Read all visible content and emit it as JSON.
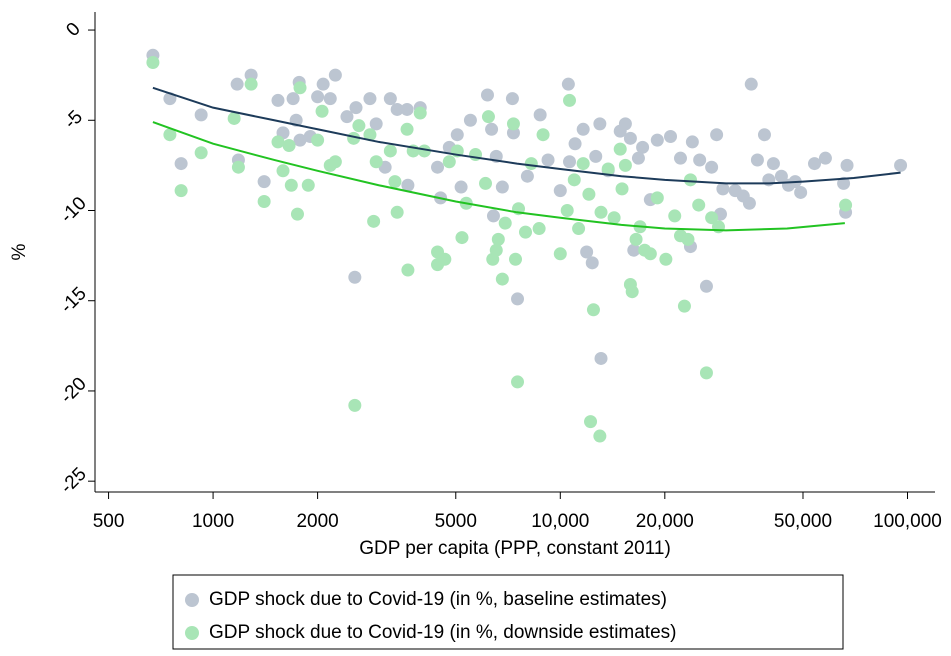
{
  "chart_data": {
    "type": "scatter",
    "x_label": "GDP per capita (PPP, constant 2011)",
    "y_label": "%",
    "x_scale": "log",
    "xlim": [
      457,
      120000
    ],
    "ylim": [
      -25.6,
      1.0
    ],
    "xticks": [
      500,
      1000,
      2000,
      5000,
      {
        "value": 10000,
        "label": "10,000"
      },
      {
        "value": 20000,
        "label": "20,000"
      },
      {
        "value": 50000,
        "label": "50,000"
      },
      {
        "value": 100000,
        "label": "100,000"
      }
    ],
    "yticks": [
      0,
      -5,
      -10,
      -15,
      -20,
      -25
    ],
    "grid": false,
    "legend_position": "bottom",
    "series": [
      {
        "name": "GDP shock due to Covid-19 (in %, baseline estimates)",
        "color": "#bcc5d1",
        "x": [
          671,
          751,
          924,
          809,
          1173,
          1183,
          1287,
          1403,
          1538,
          1590,
          1700,
          1735,
          1770,
          1780,
          1905,
          2000,
          2075,
          2175,
          2250,
          2430,
          2580,
          2560,
          2830,
          2950,
          3130,
          3240,
          3390,
          3620,
          3640,
          3950,
          4430,
          4520,
          4790,
          5050,
          5180,
          5510,
          6170,
          6340,
          6420,
          6540,
          6810,
          7280,
          7330,
          7530,
          8040,
          8750,
          9220,
          10000,
          10550,
          10630,
          11030,
          11640,
          11910,
          12360,
          12650,
          13000,
          13100,
          13740,
          14880,
          15400,
          15920,
          16280,
          16790,
          17260,
          18170,
          19030,
          20770,
          22190,
          23710,
          24010,
          25200,
          26360,
          27280,
          28200,
          28930,
          29400,
          31900,
          33650,
          35050,
          35480,
          36960,
          38730,
          39860,
          41100,
          43330,
          45420,
          47480,
          49230,
          53970,
          58020,
          65450,
          66320,
          66970,
          95500
        ],
        "values": [
          -1.4,
          -3.8,
          -4.7,
          -7.4,
          -3.0,
          -7.2,
          -2.5,
          -8.4,
          -3.9,
          -5.7,
          -3.8,
          -5.0,
          -2.9,
          -6.1,
          -5.9,
          -3.7,
          -3.0,
          -3.8,
          -2.5,
          -4.8,
          -4.3,
          -13.7,
          -3.8,
          -5.2,
          -7.6,
          -3.8,
          -4.4,
          -4.4,
          -8.6,
          -4.3,
          -7.6,
          -9.3,
          -6.5,
          -5.8,
          -8.7,
          -5.0,
          -3.6,
          -5.5,
          -10.3,
          -7.0,
          -8.7,
          -3.8,
          -5.7,
          -14.9,
          -8.1,
          -4.7,
          -7.2,
          -8.9,
          -3.0,
          -7.3,
          -6.3,
          -5.5,
          -12.3,
          -12.9,
          -7.0,
          -5.2,
          -18.2,
          -7.8,
          -5.6,
          -5.2,
          -6.0,
          -12.2,
          -7.1,
          -6.5,
          -9.4,
          -6.1,
          -5.9,
          -7.1,
          -12.0,
          -6.2,
          -7.2,
          -14.2,
          -7.6,
          -5.8,
          -10.2,
          -8.8,
          -8.9,
          -9.2,
          -9.6,
          -3.0,
          -7.2,
          -5.8,
          -8.3,
          -7.4,
          -8.1,
          -8.6,
          -8.4,
          -9.0,
          -7.4,
          -7.1,
          -8.5,
          -10.1,
          -7.5,
          -7.5
        ]
      },
      {
        "name": "GDP shock due to Covid-19 (in %, downside estimates)",
        "color": "#a8e5b6",
        "x": [
          671,
          751,
          809,
          924,
          1150,
          1183,
          1287,
          1403,
          1538,
          1590,
          1655,
          1680,
          1750,
          1780,
          1880,
          2000,
          2060,
          2175,
          2250,
          2560,
          2540,
          2630,
          2830,
          2900,
          2950,
          3240,
          3340,
          3390,
          3620,
          3640,
          3770,
          3950,
          4060,
          4430,
          4430,
          4650,
          4790,
          5050,
          5210,
          5360,
          5700,
          6090,
          6210,
          6390,
          6540,
          6630,
          6810,
          6940,
          7330,
          7430,
          7530,
          7580,
          7940,
          8250,
          8690,
          8920,
          10000,
          10470,
          10630,
          10970,
          11290,
          11640,
          12090,
          12220,
          12460,
          13000,
          13100,
          13740,
          14290,
          14880,
          15060,
          15400,
          15920,
          16110,
          16530,
          16970,
          17500,
          18170,
          19030,
          20140,
          21360,
          22190,
          22780,
          23320,
          23710,
          25040,
          26360,
          27280,
          28550,
          66320
        ],
        "values": [
          -1.8,
          -5.8,
          -8.9,
          -6.8,
          -4.9,
          -7.6,
          -3.0,
          -9.5,
          -6.2,
          -7.8,
          -6.4,
          -8.6,
          -10.2,
          -3.2,
          -8.6,
          -6.1,
          -4.5,
          -7.5,
          -7.3,
          -20.8,
          -6.0,
          -5.3,
          -5.8,
          -10.6,
          -7.3,
          -6.7,
          -8.4,
          -10.1,
          -5.5,
          -13.3,
          -6.7,
          -4.6,
          -6.7,
          -12.3,
          -13.0,
          -12.7,
          -7.3,
          -6.7,
          -11.5,
          -9.6,
          -6.9,
          -8.5,
          -4.8,
          -12.7,
          -12.2,
          -11.6,
          -13.8,
          -10.7,
          -5.2,
          -12.7,
          -19.5,
          -9.9,
          -11.2,
          -7.4,
          -11.0,
          -5.8,
          -12.4,
          -10.0,
          -3.9,
          -8.3,
          -11.0,
          -7.4,
          -9.1,
          -21.7,
          -15.5,
          -22.5,
          -10.1,
          -7.7,
          -10.4,
          -6.6,
          -8.8,
          -7.5,
          -14.1,
          -14.5,
          -11.6,
          -10.9,
          -12.2,
          -12.4,
          -9.3,
          -12.7,
          -10.3,
          -11.4,
          -15.3,
          -11.6,
          -8.3,
          -9.7,
          -19.0,
          -10.4,
          -10.9,
          -9.7
        ]
      },
      {
        "type": "line",
        "color": "#1d3b5a",
        "x": [
          671,
          1000,
          1500,
          2000,
          3000,
          5000,
          7500,
          10000,
          15000,
          20000,
          30000,
          40000,
          50000,
          70000,
          95500
        ],
        "values": [
          -3.2,
          -4.3,
          -5.0,
          -5.5,
          -6.2,
          -6.9,
          -7.4,
          -7.7,
          -8.1,
          -8.3,
          -8.5,
          -8.5,
          -8.4,
          -8.2,
          -7.9
        ]
      },
      {
        "type": "line",
        "color": "#22c322",
        "x": [
          671,
          1000,
          1500,
          2000,
          3000,
          5000,
          7500,
          10000,
          15000,
          20000,
          30000,
          45000,
          66000
        ],
        "values": [
          -5.1,
          -6.3,
          -7.2,
          -7.8,
          -8.6,
          -9.5,
          -10.1,
          -10.4,
          -10.8,
          -11.0,
          -11.1,
          -11.0,
          -10.7
        ]
      }
    ]
  }
}
